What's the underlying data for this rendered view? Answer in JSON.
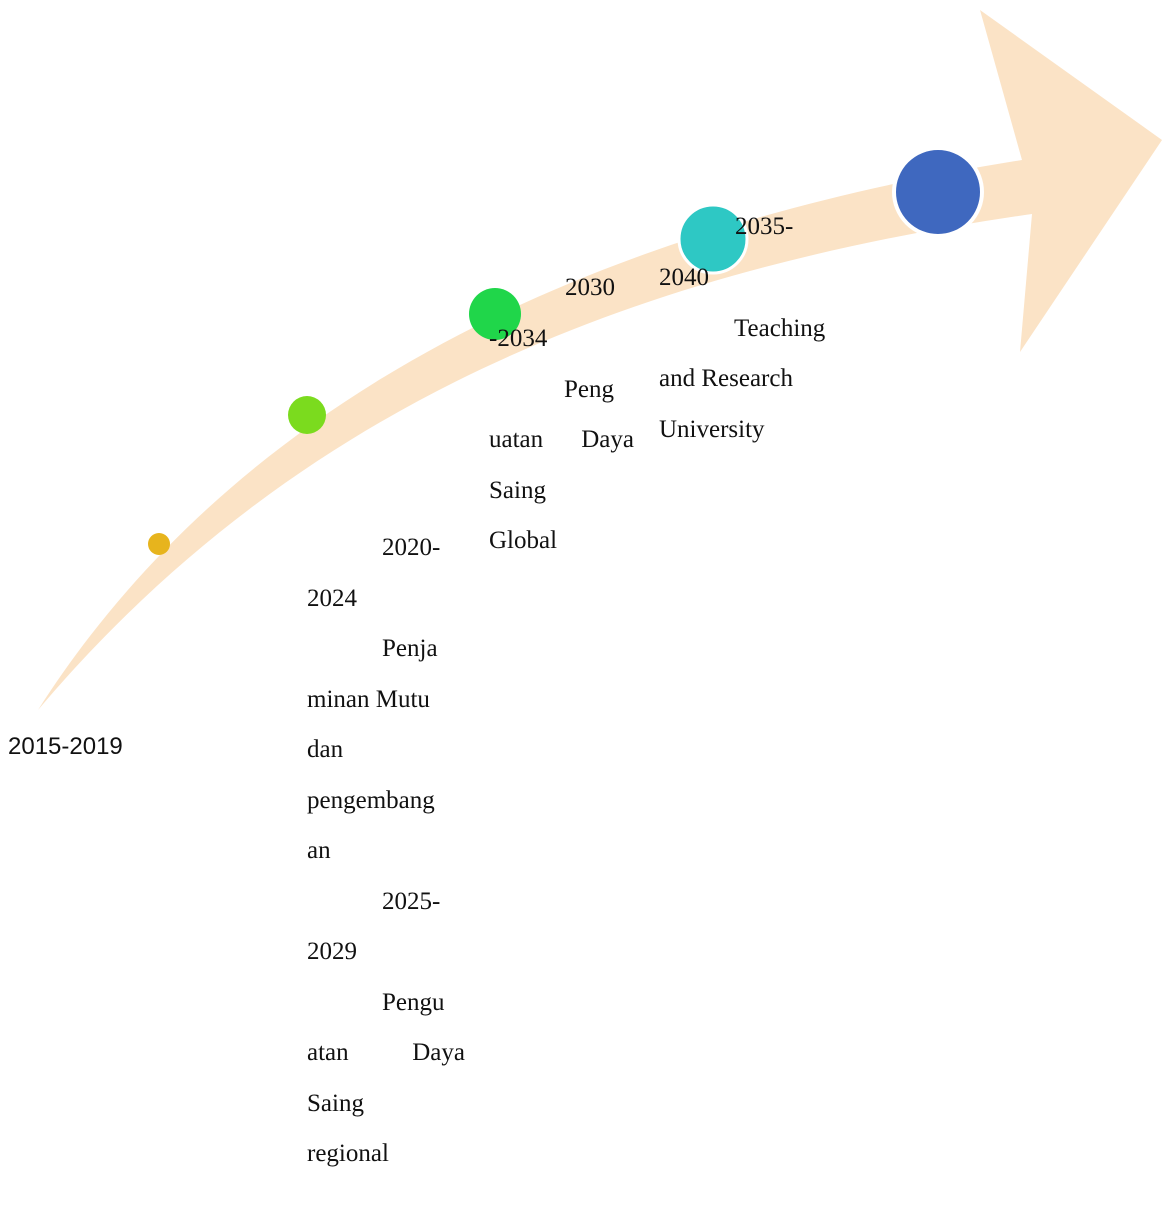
{
  "colors": {
    "arrow": "#fbe3c6",
    "phase_1": "#e7b41d",
    "phase_2": "#7bdb1e",
    "phase_3": "#20d64a",
    "phase_4": "#2ec8c4",
    "phase_5": "#3f68bf"
  },
  "phases": [
    {
      "period": "2015-2019"
    },
    {
      "period_lines": [
        "2020-",
        "2024"
      ],
      "description_lines": [
        "Penja",
        "minan Mutu",
        "dan",
        "pengembang",
        "an"
      ]
    },
    {
      "period_lines": [
        "2025-",
        "2029"
      ],
      "description_lines": [
        "Pengu",
        "atan",
        "Daya",
        "Saing",
        "regional"
      ]
    },
    {
      "period_lines": [
        "2030",
        "-2034"
      ],
      "description_lines": [
        "Peng",
        "uatan",
        "Daya",
        "Saing",
        "Global"
      ]
    },
    {
      "period_lines": [
        "2035-",
        "2040"
      ],
      "description_lines": [
        "Teaching",
        "and Research",
        "University"
      ]
    }
  ]
}
